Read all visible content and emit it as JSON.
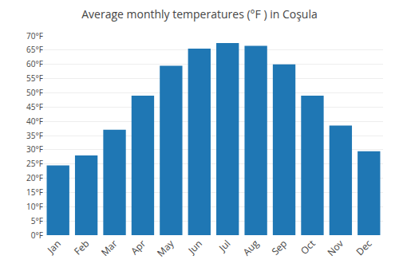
{
  "chart_data": {
    "type": "bar",
    "title": "Average monthly temperatures (°F ) in Coşula",
    "categories": [
      "Jan",
      "Feb",
      "Mar",
      "Apr",
      "May",
      "Jun",
      "Jul",
      "Aug",
      "Sep",
      "Oct",
      "Nov",
      "Dec"
    ],
    "values": [
      24.5,
      28.0,
      37.0,
      49.0,
      59.5,
      65.5,
      67.5,
      66.5,
      60.0,
      49.0,
      38.5,
      29.5
    ],
    "ylim": [
      0,
      70
    ],
    "yticks": [
      {
        "value": 0,
        "label": "0°F"
      },
      {
        "value": 5,
        "label": "5°F"
      },
      {
        "value": 10,
        "label": "10°F"
      },
      {
        "value": 15,
        "label": "15°F"
      },
      {
        "value": 20,
        "label": "20°F"
      },
      {
        "value": 25,
        "label": "25°F"
      },
      {
        "value": 30,
        "label": "30°F"
      },
      {
        "value": 35,
        "label": "35°F"
      },
      {
        "value": 40,
        "label": "40°F"
      },
      {
        "value": 45,
        "label": "45°F"
      },
      {
        "value": 50,
        "label": "50°F"
      },
      {
        "value": 55,
        "label": "55°F"
      },
      {
        "value": 60,
        "label": "60°F"
      },
      {
        "value": 65,
        "label": "65°F"
      },
      {
        "value": 70,
        "label": "70°F"
      }
    ],
    "grid": true
  }
}
